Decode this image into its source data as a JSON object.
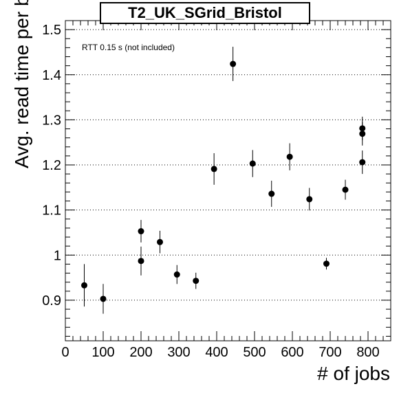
{
  "chart_data": {
    "type": "scatter",
    "title": "T2_UK_SGrid_Bristol",
    "annotation": "RTT 0.15 s (not included)",
    "xlabel": "# of jobs",
    "ylabel": "Avg. read time per block [s]",
    "xlim": [
      0,
      860
    ],
    "ylim": [
      0.81,
      1.52
    ],
    "x_ticks": [
      0,
      100,
      200,
      300,
      400,
      500,
      600,
      700,
      800
    ],
    "y_ticks": [
      0.9,
      1,
      1.1,
      1.2,
      1.3,
      1.4,
      1.5
    ],
    "y_tick_labels": [
      "0.9",
      "1",
      "1.1",
      "1.2",
      "1.3",
      "1.4",
      "1.5"
    ],
    "grid": "horizontal dotted",
    "points": [
      {
        "x": 50,
        "y": 0.933,
        "err": 0.047
      },
      {
        "x": 100,
        "y": 0.903,
        "err": 0.033
      },
      {
        "x": 200,
        "y": 1.053,
        "err": 0.025
      },
      {
        "x": 200,
        "y": 0.987,
        "err": 0.032
      },
      {
        "x": 250,
        "y": 1.029,
        "err": 0.025
      },
      {
        "x": 295,
        "y": 0.957,
        "err": 0.021
      },
      {
        "x": 345,
        "y": 0.943,
        "err": 0.018
      },
      {
        "x": 393,
        "y": 1.191,
        "err": 0.035
      },
      {
        "x": 443,
        "y": 1.424,
        "err": 0.038
      },
      {
        "x": 495,
        "y": 1.203,
        "err": 0.03
      },
      {
        "x": 545,
        "y": 1.136,
        "err": 0.029
      },
      {
        "x": 593,
        "y": 1.218,
        "err": 0.03
      },
      {
        "x": 645,
        "y": 1.124,
        "err": 0.025
      },
      {
        "x": 690,
        "y": 0.981,
        "err": 0.013
      },
      {
        "x": 740,
        "y": 1.145,
        "err": 0.022
      },
      {
        "x": 785,
        "y": 1.281,
        "err": 0.026
      },
      {
        "x": 785,
        "y": 1.269,
        "err": 0.026
      },
      {
        "x": 785,
        "y": 1.206,
        "err": 0.026
      }
    ]
  }
}
